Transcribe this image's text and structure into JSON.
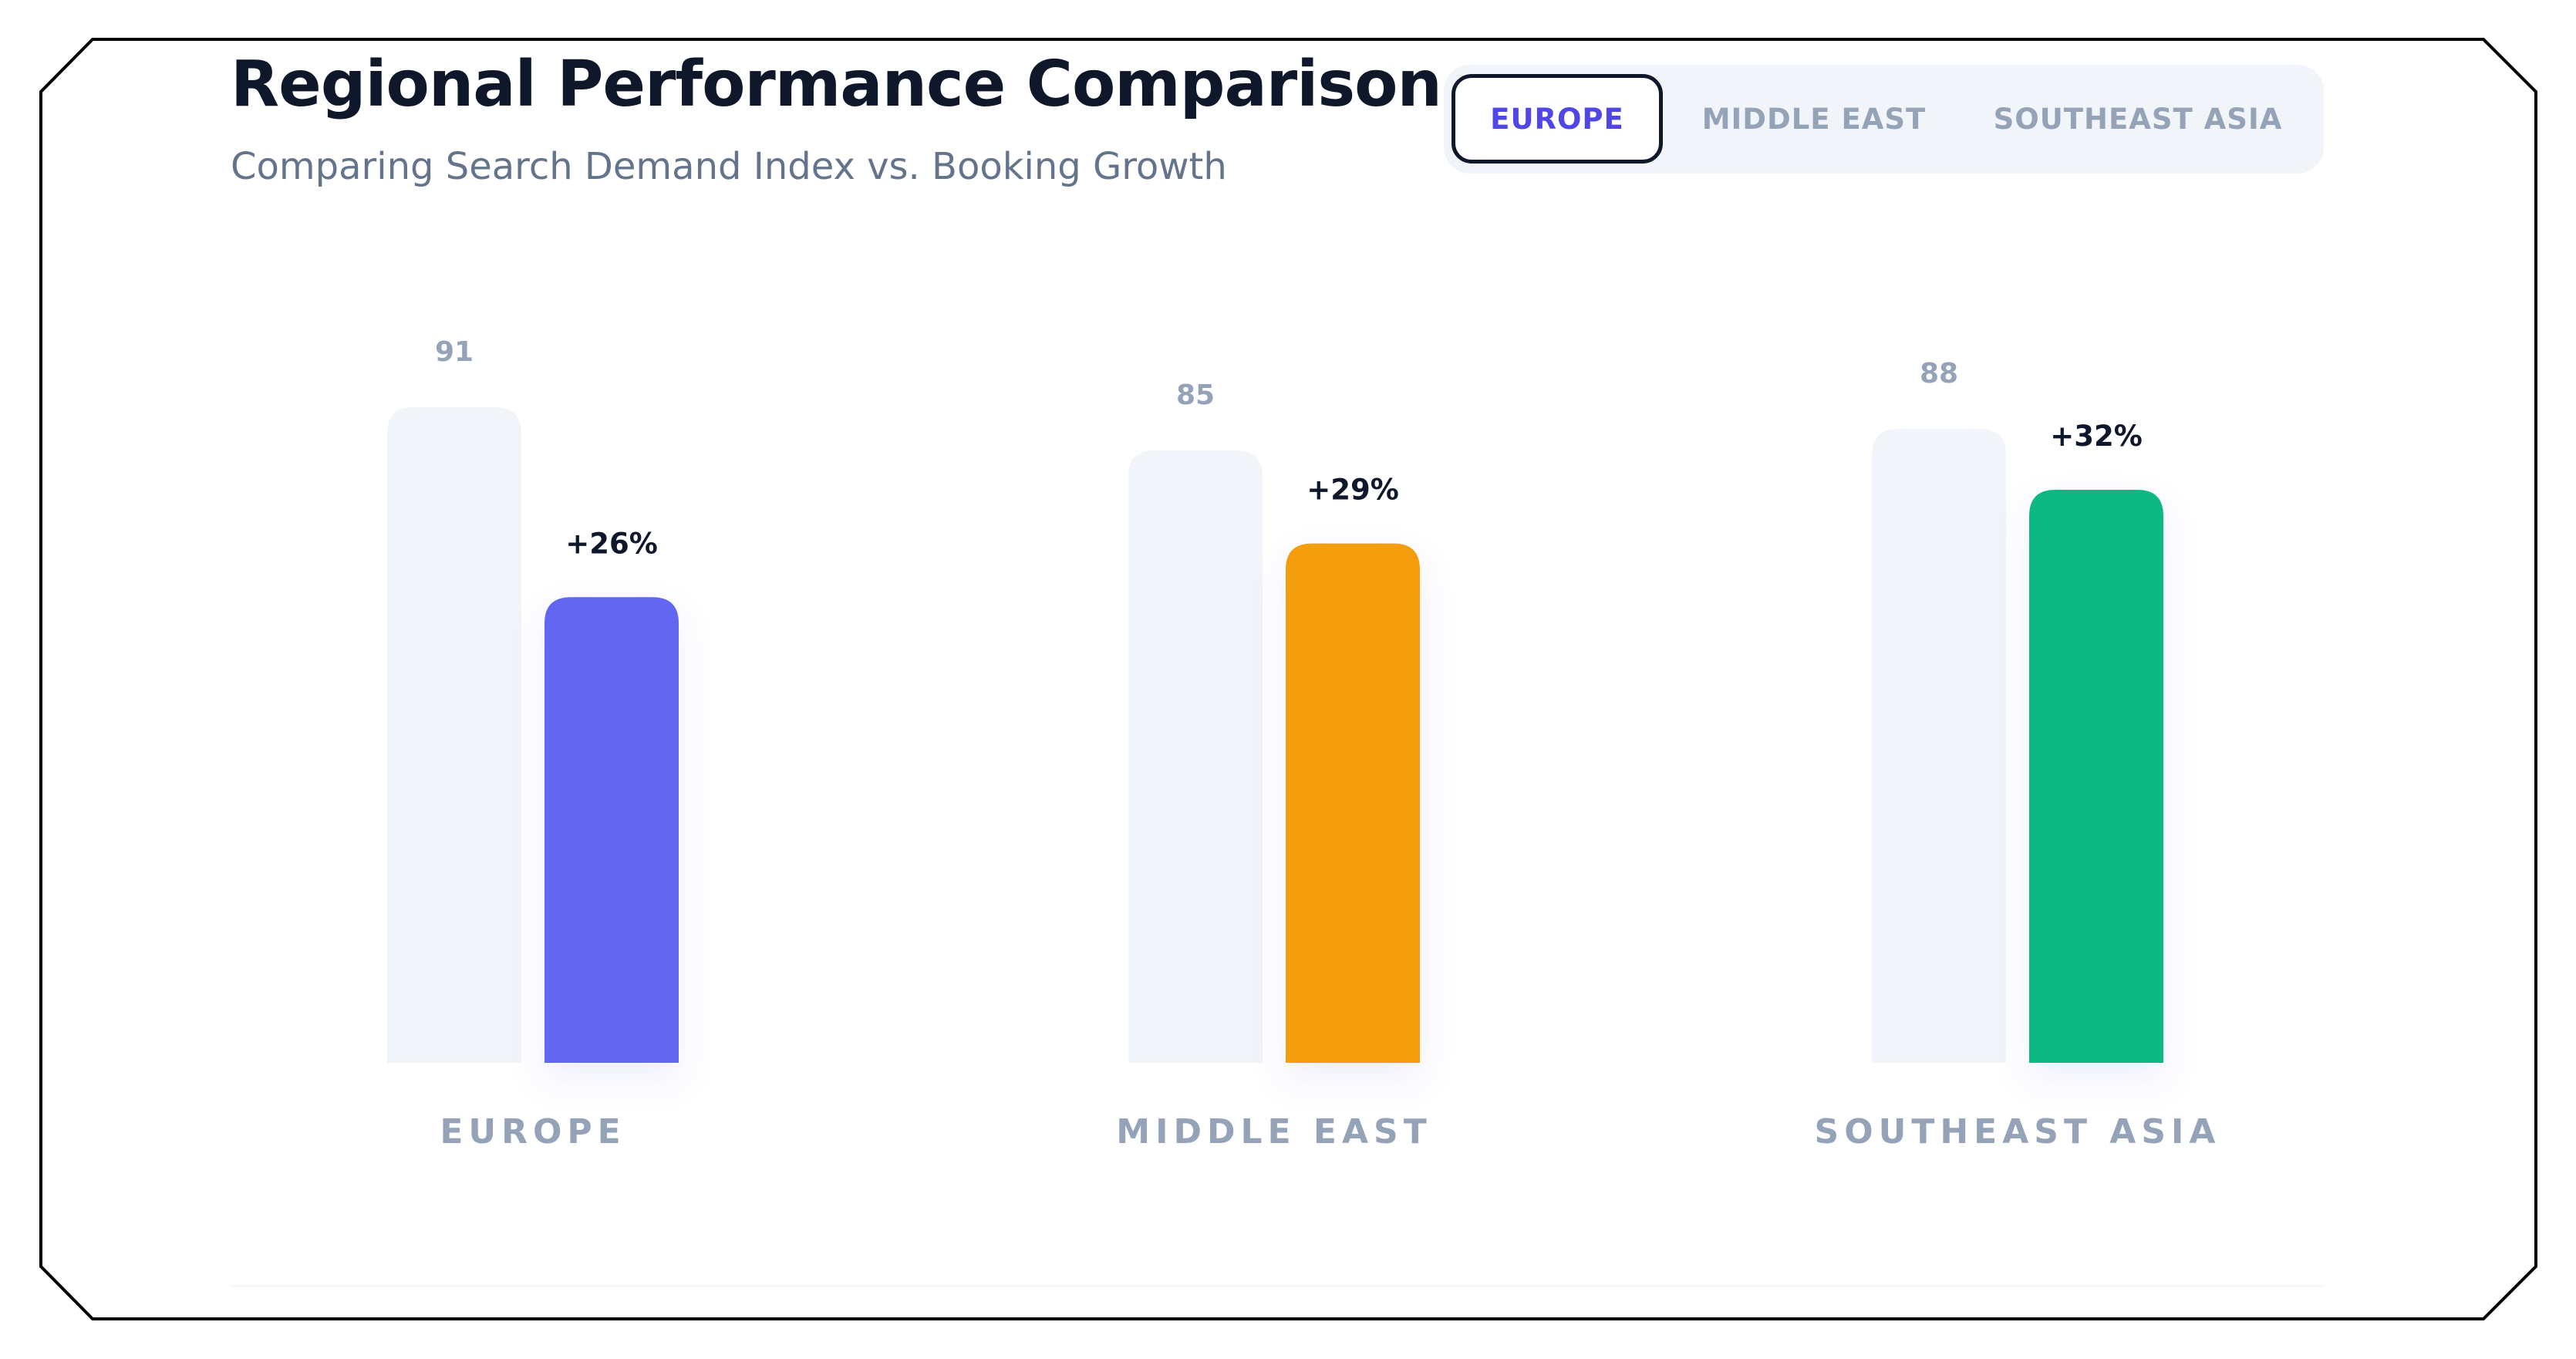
{
  "header": {
    "title": "Regional Performance Comparison",
    "subtitle": "Comparing Search Demand Index vs. Booking Growth"
  },
  "tabs": [
    {
      "label": "EUROPE",
      "active": true
    },
    {
      "label": "MIDDLE EAST",
      "active": false
    },
    {
      "label": "SOUTHEAST ASIA",
      "active": false
    }
  ],
  "colors": {
    "background_bar": "#f1f5f9",
    "europe": "#6366f1",
    "middle_east": "#f59e0b",
    "southeast_asia": "#10b981",
    "active_tab_text": "#4f46e5",
    "title": "#0f172a",
    "muted": "#94a3b8"
  },
  "chart_data": {
    "type": "bar",
    "categories": [
      "EUROPE",
      "MIDDLE EAST",
      "SOUTHEAST ASIA"
    ],
    "series": [
      {
        "values": [
          91,
          85,
          88
        ],
        "labels": [
          "91",
          "85",
          "88"
        ],
        "color": "#f1f5f9"
      },
      {
        "values": [
          26,
          29,
          32
        ],
        "labels": [
          "+26%",
          "+29%",
          "+32%"
        ],
        "colors": [
          "#6366f1",
          "#f59e0b",
          "#10b981"
        ]
      }
    ],
    "title": "",
    "xlabel": "",
    "ylabel": "",
    "grid": false
  }
}
